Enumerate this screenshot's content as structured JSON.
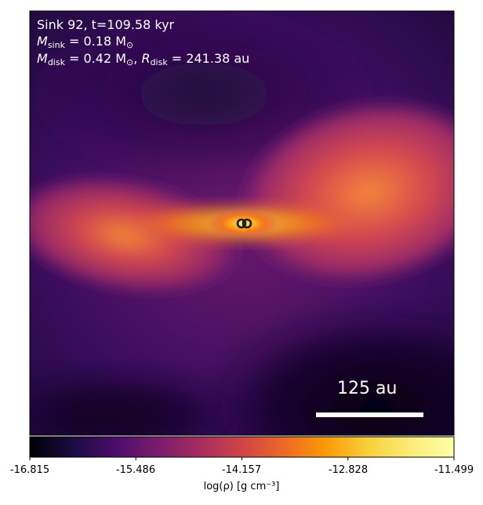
{
  "header": {
    "sink_line": "Sink 92, t=109.58 kyr",
    "m_sink_symbol": "M",
    "m_sink_sub": "sink",
    "m_sink_value": " = 0.18 M",
    "m_sink_unit_sub": "⊙",
    "m_disk_symbol": "M",
    "m_disk_sub": "disk",
    "m_disk_value": " = 0.42 M",
    "m_disk_unit_sub": "⊙",
    "separator": ", ",
    "r_disk_symbol": "R",
    "r_disk_sub": "disk",
    "r_disk_value": " = 241.38 au"
  },
  "scale_bar": {
    "label": "125 au"
  },
  "colorbar": {
    "ticks": [
      "-16.815",
      "-15.486",
      "-14.157",
      "-12.828",
      "-11.499"
    ],
    "tick_values": [
      -16.815,
      -15.486,
      -14.157,
      -12.828,
      -11.499
    ],
    "range": [
      -16.815,
      -11.499
    ],
    "label": "log(ρ) [g cm⁻³]",
    "colormap": "inferno"
  },
  "sinks": [
    {
      "color": "#1a1a1a"
    },
    {
      "color": "#1a1a1a"
    }
  ]
}
